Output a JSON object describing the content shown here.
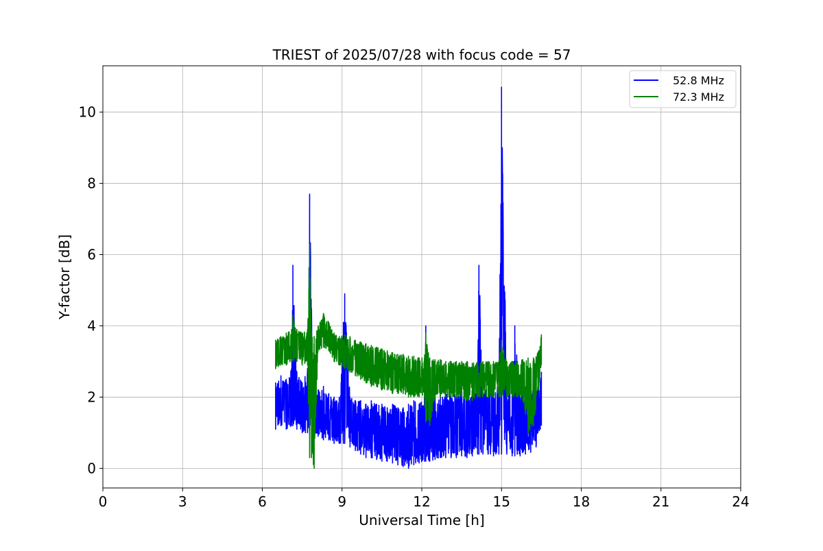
{
  "chart_data": {
    "type": "line",
    "title": "TRIEST of 2025/07/28 with focus code = 57",
    "xlabel": "Universal Time [h]",
    "ylabel": "Y-factor [dB]",
    "xlim": [
      0,
      24
    ],
    "ylim": [
      -0.55,
      11.3
    ],
    "xticks": [
      0,
      3,
      6,
      9,
      12,
      15,
      18,
      21,
      24
    ],
    "yticks": [
      0,
      2,
      4,
      6,
      8,
      10
    ],
    "grid": true,
    "legend_position": "top-right",
    "series": [
      {
        "name": "52.8 MHz",
        "color": "#0000ff",
        "x": [
          6.5,
          6.7,
          6.9,
          7.1,
          7.15,
          7.3,
          7.5,
          7.7,
          7.78,
          7.9,
          8.1,
          8.3,
          8.5,
          8.7,
          8.9,
          9.05,
          9.1,
          9.3,
          9.5,
          9.7,
          9.9,
          10.1,
          10.3,
          10.5,
          10.7,
          10.9,
          11.1,
          11.3,
          11.5,
          11.7,
          11.9,
          12.1,
          12.15,
          12.3,
          12.5,
          12.7,
          12.9,
          13.1,
          13.3,
          13.5,
          13.7,
          13.9,
          14.1,
          14.15,
          14.3,
          14.5,
          14.7,
          14.9,
          15.0,
          15.2,
          15.4,
          15.5,
          15.7,
          15.9,
          16.1,
          16.3,
          16.5
        ],
        "upper": [
          2.4,
          2.6,
          2.5,
          2.8,
          5.7,
          2.7,
          2.4,
          2.8,
          7.7,
          2.3,
          2.2,
          2.3,
          2.1,
          2.0,
          2.0,
          4.1,
          4.9,
          2.0,
          1.9,
          1.9,
          1.8,
          1.9,
          1.8,
          1.8,
          1.7,
          1.8,
          1.7,
          1.7,
          1.8,
          1.9,
          1.8,
          2.0,
          4.0,
          2.0,
          2.0,
          2.0,
          2.1,
          2.1,
          2.1,
          2.2,
          2.1,
          2.2,
          2.3,
          5.7,
          2.3,
          2.4,
          2.4,
          2.3,
          10.7,
          2.3,
          2.3,
          4.0,
          2.2,
          2.2,
          2.3,
          2.4,
          2.7
        ],
        "lower": [
          1.1,
          1.2,
          1.1,
          1.2,
          1.2,
          1.1,
          1.0,
          1.0,
          1.0,
          0.9,
          0.9,
          0.8,
          0.8,
          0.7,
          0.7,
          0.7,
          0.7,
          0.6,
          0.5,
          0.4,
          0.3,
          0.3,
          0.25,
          0.2,
          0.2,
          0.15,
          0.1,
          0.05,
          0.0,
          0.1,
          0.15,
          0.2,
          0.2,
          0.2,
          0.25,
          0.3,
          0.3,
          0.3,
          0.3,
          0.35,
          0.3,
          0.35,
          0.4,
          0.4,
          0.4,
          0.4,
          0.35,
          0.4,
          0.4,
          0.4,
          0.35,
          0.35,
          0.35,
          0.4,
          0.45,
          0.6,
          1.2
        ]
      },
      {
        "name": "72.3 MHz",
        "color": "#008000",
        "x": [
          6.5,
          6.7,
          6.9,
          7.1,
          7.15,
          7.3,
          7.5,
          7.7,
          7.78,
          7.85,
          7.95,
          8.1,
          8.3,
          8.5,
          8.7,
          8.9,
          9.1,
          9.3,
          9.5,
          9.7,
          9.9,
          10.1,
          10.3,
          10.5,
          10.7,
          10.9,
          11.1,
          11.3,
          11.5,
          11.7,
          11.9,
          12.1,
          12.15,
          12.3,
          12.5,
          12.7,
          12.9,
          13.1,
          13.3,
          13.5,
          13.7,
          13.9,
          14.1,
          14.3,
          14.5,
          14.7,
          14.9,
          15.0,
          15.2,
          15.4,
          15.6,
          15.8,
          16.0,
          16.2,
          16.4,
          16.5
        ],
        "upper": [
          3.6,
          3.7,
          3.8,
          3.9,
          4.3,
          3.9,
          3.8,
          3.9,
          6.3,
          3.8,
          3.7,
          4.0,
          4.35,
          4.1,
          3.8,
          3.7,
          3.75,
          3.7,
          3.6,
          3.55,
          3.5,
          3.45,
          3.4,
          3.35,
          3.3,
          3.25,
          3.2,
          3.2,
          3.15,
          3.15,
          3.1,
          3.1,
          3.8,
          3.1,
          3.05,
          3.05,
          3.0,
          3.0,
          3.0,
          3.0,
          3.0,
          2.95,
          3.0,
          3.0,
          3.0,
          3.0,
          3.0,
          3.6,
          3.0,
          3.0,
          3.0,
          3.05,
          3.1,
          3.1,
          3.3,
          3.75
        ],
        "lower": [
          2.8,
          2.9,
          2.9,
          3.0,
          3.0,
          3.0,
          2.9,
          2.9,
          0.3,
          0.3,
          0.0,
          3.3,
          3.4,
          3.3,
          3.0,
          2.9,
          2.8,
          2.7,
          2.6,
          2.5,
          2.4,
          2.3,
          2.3,
          2.2,
          2.2,
          2.1,
          2.1,
          2.1,
          2.0,
          2.0,
          2.0,
          2.0,
          1.3,
          1.2,
          2.0,
          2.0,
          2.0,
          2.0,
          2.0,
          2.0,
          1.9,
          1.9,
          2.0,
          2.0,
          2.0,
          2.0,
          2.0,
          2.0,
          2.0,
          2.0,
          2.0,
          1.9,
          1.0,
          1.2,
          2.2,
          2.9
        ]
      }
    ]
  }
}
